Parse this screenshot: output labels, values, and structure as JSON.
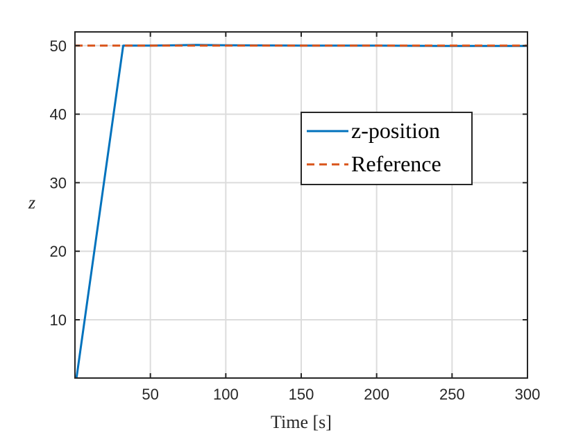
{
  "chart_data": {
    "type": "line",
    "title": "",
    "xlabel": "Time [s]",
    "ylabel": "z",
    "xlim": [
      0,
      300
    ],
    "ylim": [
      1.5,
      52
    ],
    "xticks": [
      50,
      100,
      150,
      200,
      250,
      300
    ],
    "yticks": [
      10,
      20,
      30,
      40,
      50
    ],
    "grid": true,
    "legend_location": "right-middle",
    "series": [
      {
        "name": "z-position",
        "color": "#0072BD",
        "style": "solid",
        "x": [
          1,
          32,
          50,
          80,
          100,
          150,
          200,
          250,
          300
        ],
        "y": [
          1.5,
          50.0,
          50.0,
          50.1,
          50.05,
          50.0,
          50.0,
          49.95,
          49.95
        ]
      },
      {
        "name": "Reference",
        "color": "#D95319",
        "style": "dashed",
        "x": [
          0,
          300
        ],
        "y": [
          50,
          50
        ]
      }
    ]
  }
}
